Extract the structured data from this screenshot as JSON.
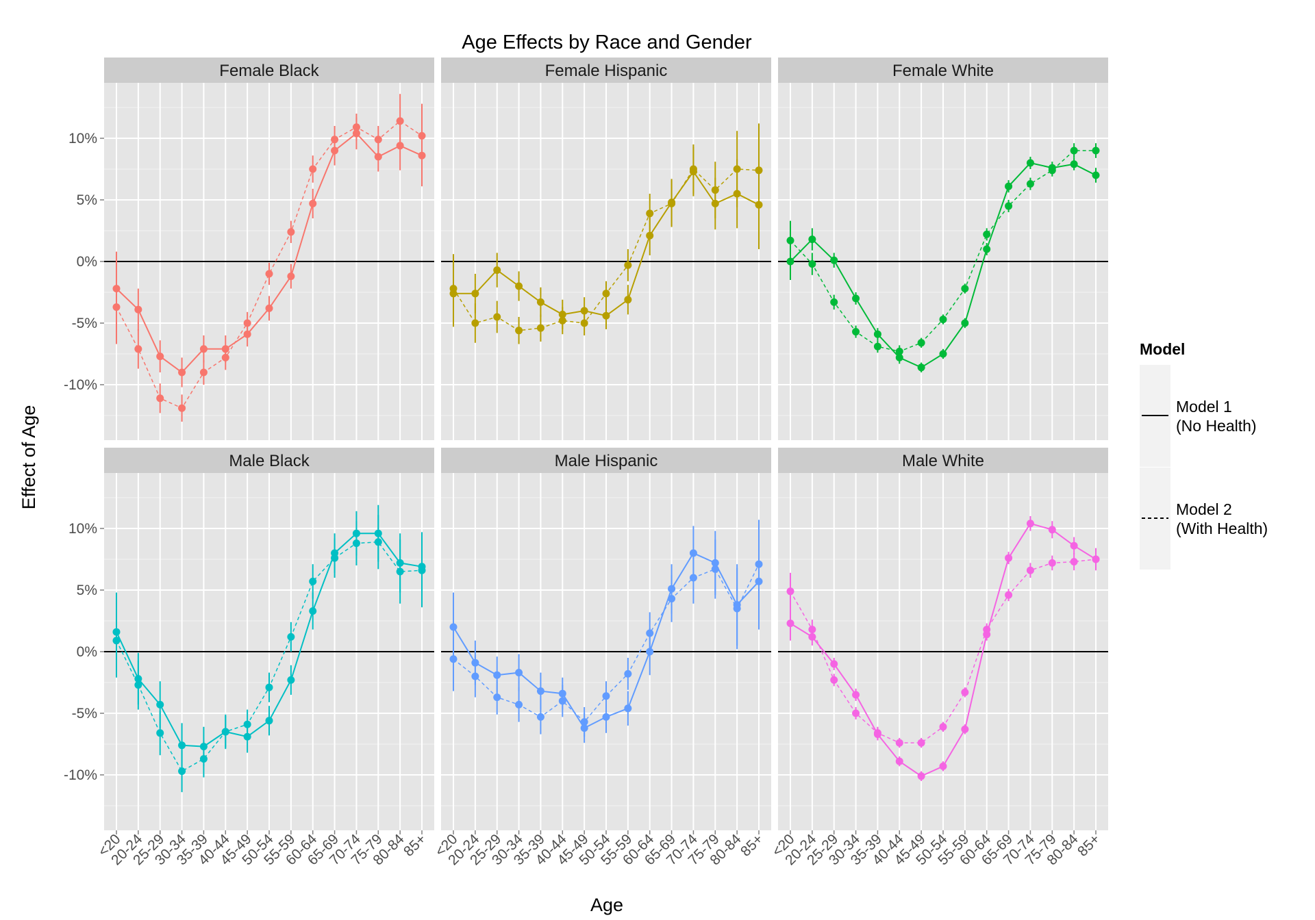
{
  "chart_data": {
    "type": "line",
    "title": "Age Effects by Race and Gender",
    "xlabel": "Age",
    "ylabel": "Effect of Age",
    "categories": [
      "<20",
      "20-24",
      "25-29",
      "30-34",
      "35-39",
      "40-44",
      "45-49",
      "50-54",
      "55-59",
      "60-64",
      "65-69",
      "70-74",
      "75-79",
      "80-84",
      "85+"
    ],
    "y_ticks": [
      "-10%",
      "-5%",
      "0%",
      "5%",
      "10%"
    ],
    "y_tick_values": [
      -10,
      -5,
      0,
      5,
      10
    ],
    "ylim": [
      -14.5,
      14.5
    ],
    "grid": true,
    "reference_line": 0,
    "legend": {
      "title": "Model",
      "position": "right",
      "items": [
        {
          "label_line1": "Model 1",
          "label_line2": "(No Health)",
          "linetype": "solid"
        },
        {
          "label_line1": "Model 2",
          "label_line2": "(With Health)",
          "linetype": "dashed"
        }
      ]
    },
    "panels": [
      {
        "label": "Female Black",
        "color": "#F8766D",
        "model1": [
          -2.2,
          -3.9,
          -7.7,
          -9.0,
          -7.1,
          -7.1,
          -5.9,
          -3.8,
          -1.2,
          4.7,
          9.0,
          10.4,
          8.5,
          9.4,
          8.6
        ],
        "model1_err": [
          3.0,
          1.7,
          1.3,
          1.2,
          1.1,
          1.1,
          1.0,
          1.0,
          1.0,
          1.2,
          1.2,
          1.3,
          1.2,
          2.0,
          2.5
        ],
        "model2": [
          -3.7,
          -7.1,
          -11.1,
          -11.9,
          -9.0,
          -7.8,
          -5.0,
          -1.0,
          2.4,
          7.5,
          9.9,
          10.9,
          9.9,
          11.4,
          10.2
        ],
        "model2_err": [
          3.0,
          1.6,
          1.2,
          1.1,
          1.0,
          1.0,
          0.9,
          0.9,
          0.9,
          1.1,
          1.1,
          1.1,
          1.1,
          2.2,
          2.6
        ]
      },
      {
        "label": "Female Hispanic",
        "color": "#B79F00",
        "model1": [
          -2.6,
          -2.6,
          -0.7,
          -2.0,
          -3.3,
          -4.3,
          -4.0,
          -4.4,
          -3.1,
          2.1,
          4.8,
          7.3,
          4.7,
          5.5,
          4.6
        ],
        "model1_err": [
          2.7,
          1.6,
          1.4,
          1.2,
          1.2,
          1.2,
          1.1,
          1.1,
          1.2,
          1.6,
          1.9,
          2.0,
          2.1,
          2.8,
          3.6
        ],
        "model2": [
          -2.2,
          -5.0,
          -4.5,
          -5.6,
          -5.4,
          -4.8,
          -5.0,
          -2.6,
          -0.3,
          3.9,
          4.7,
          7.5,
          5.8,
          7.5,
          7.4
        ],
        "model2_err": [
          2.8,
          1.6,
          1.3,
          1.1,
          1.1,
          1.1,
          1.0,
          1.0,
          1.3,
          1.6,
          1.9,
          2.0,
          2.3,
          3.1,
          3.8
        ]
      },
      {
        "label": "Female White",
        "color": "#00BA38",
        "model1": [
          -0.0,
          1.8,
          0.1,
          -3.0,
          -5.9,
          -7.8,
          -8.6,
          -7.5,
          -5.0,
          1.0,
          6.1,
          8.0,
          7.6,
          7.9,
          7.0
        ],
        "model1_err": [
          1.5,
          0.9,
          0.6,
          0.5,
          0.5,
          0.5,
          0.4,
          0.4,
          0.4,
          0.5,
          0.5,
          0.5,
          0.5,
          0.5,
          0.6
        ],
        "model2": [
          1.7,
          -0.2,
          -3.3,
          -5.7,
          -6.9,
          -7.3,
          -6.6,
          -4.7,
          -2.2,
          2.2,
          4.5,
          6.3,
          7.4,
          9.0,
          9.0
        ],
        "model2_err": [
          1.6,
          0.9,
          0.6,
          0.5,
          0.5,
          0.5,
          0.4,
          0.4,
          0.4,
          0.5,
          0.5,
          0.5,
          0.5,
          0.6,
          0.6
        ]
      },
      {
        "label": "Male Black",
        "color": "#00BFC4",
        "model1": [
          1.6,
          -2.2,
          -4.3,
          -7.6,
          -7.7,
          -6.5,
          -6.9,
          -5.6,
          -2.3,
          3.3,
          8.0,
          9.6,
          9.6,
          7.2,
          6.9
        ],
        "model1_err": [
          3.2,
          2.1,
          1.9,
          1.8,
          1.6,
          1.4,
          1.3,
          1.2,
          1.2,
          1.5,
          1.6,
          1.8,
          2.3,
          2.4,
          2.8
        ],
        "model2": [
          0.9,
          -2.7,
          -6.6,
          -9.7,
          -8.7,
          -6.5,
          -5.9,
          -2.9,
          1.2,
          5.7,
          7.6,
          8.8,
          8.9,
          6.5,
          6.6
        ],
        "model2_err": [
          3.0,
          2.0,
          1.8,
          1.7,
          1.5,
          1.3,
          1.2,
          1.2,
          1.2,
          1.4,
          1.6,
          1.8,
          2.2,
          2.6,
          3.0
        ]
      },
      {
        "label": "Male Hispanic",
        "color": "#619CFF",
        "model1": [
          2.0,
          -0.9,
          -1.9,
          -1.7,
          -3.2,
          -3.4,
          -6.2,
          -5.3,
          -4.6,
          0.0,
          5.1,
          8.0,
          7.2,
          3.8,
          5.7
        ],
        "model1_err": [
          2.8,
          1.8,
          1.5,
          1.5,
          1.5,
          1.3,
          1.2,
          1.3,
          1.4,
          1.9,
          2.0,
          2.2,
          2.6,
          3.3,
          3.9
        ],
        "model2": [
          -0.6,
          -2.0,
          -3.7,
          -4.3,
          -5.3,
          -4.0,
          -5.7,
          -3.6,
          -1.8,
          1.5,
          4.3,
          6.0,
          6.7,
          3.5,
          7.1
        ],
        "model2_err": [
          2.6,
          1.7,
          1.4,
          1.4,
          1.4,
          1.3,
          1.2,
          1.2,
          1.3,
          1.7,
          1.9,
          2.1,
          2.4,
          3.3,
          3.6
        ]
      },
      {
        "label": "Male White",
        "color": "#F564E3",
        "model1": [
          2.3,
          1.2,
          -1.0,
          -3.5,
          -6.7,
          -8.9,
          -10.1,
          -9.3,
          -6.3,
          1.4,
          7.6,
          10.4,
          9.9,
          8.6,
          7.5
        ],
        "model1_err": [
          1.4,
          0.7,
          0.5,
          0.5,
          0.5,
          0.4,
          0.4,
          0.4,
          0.4,
          0.5,
          0.5,
          0.6,
          0.7,
          0.7,
          0.9
        ],
        "model2": [
          4.9,
          1.8,
          -2.3,
          -5.0,
          -6.6,
          -7.4,
          -7.4,
          -6.1,
          -3.3,
          1.8,
          4.6,
          6.6,
          7.2,
          7.3,
          7.5
        ],
        "model2_err": [
          1.5,
          0.8,
          0.5,
          0.5,
          0.5,
          0.4,
          0.4,
          0.4,
          0.4,
          0.5,
          0.5,
          0.6,
          0.6,
          0.7,
          0.9
        ]
      }
    ]
  }
}
